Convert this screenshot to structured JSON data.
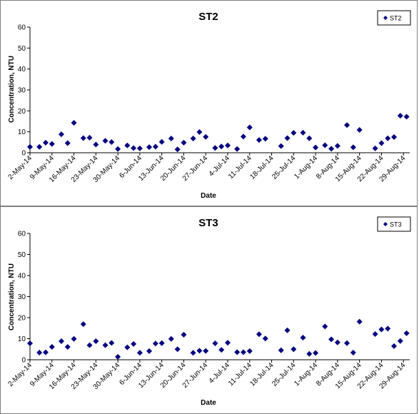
{
  "chart_data": [
    {
      "type": "scatter",
      "title": "ST2",
      "xlabel": "Date",
      "ylabel": "Concentration, NTU",
      "ylim": [
        0,
        60
      ],
      "yticks": [
        "0",
        "10",
        "20",
        "30",
        "40",
        "50",
        "60"
      ],
      "xlim": [
        "2014-05-02",
        "2014-08-31"
      ],
      "xticks": [
        {
          "date": "2014-05-02",
          "label": "2-May-14"
        },
        {
          "date": "2014-05-09",
          "label": "9-May-14"
        },
        {
          "date": "2014-05-16",
          "label": "16-May-14"
        },
        {
          "date": "2014-05-23",
          "label": "23-May-14"
        },
        {
          "date": "2014-05-30",
          "label": "30-May-14"
        },
        {
          "date": "2014-06-06",
          "label": "6-Jun-14"
        },
        {
          "date": "2014-06-13",
          "label": "13-Jun-14"
        },
        {
          "date": "2014-06-20",
          "label": "20-Jun-14"
        },
        {
          "date": "2014-06-27",
          "label": "27-Jun-14"
        },
        {
          "date": "2014-07-04",
          "label": "4-Jul-14"
        },
        {
          "date": "2014-07-11",
          "label": "11-Jul-14"
        },
        {
          "date": "2014-07-18",
          "label": "18-Jul-14"
        },
        {
          "date": "2014-07-25",
          "label": "25-Jul-14"
        },
        {
          "date": "2014-08-01",
          "label": "1-Aug-14"
        },
        {
          "date": "2014-08-08",
          "label": "8-Aug-14"
        },
        {
          "date": "2014-08-15",
          "label": "15-Aug-14"
        },
        {
          "date": "2014-08-22",
          "label": "22-Aug-14"
        },
        {
          "date": "2014-08-29",
          "label": "29-Aug-14"
        }
      ],
      "grid": false,
      "legend": "top-right",
      "series": [
        {
          "name": "ST2",
          "color": "#000080",
          "marker": "diamond",
          "points": [
            {
              "x": "2014-05-02",
              "y": 2.8
            },
            {
              "x": "2014-05-05",
              "y": 2.8
            },
            {
              "x": "2014-05-07",
              "y": 4.8
            },
            {
              "x": "2014-05-09",
              "y": 4.2
            },
            {
              "x": "2014-05-12",
              "y": 8.8
            },
            {
              "x": "2014-05-14",
              "y": 4.6
            },
            {
              "x": "2014-05-16",
              "y": 14.3
            },
            {
              "x": "2014-05-19",
              "y": 7.0
            },
            {
              "x": "2014-05-21",
              "y": 7.2
            },
            {
              "x": "2014-05-23",
              "y": 3.9
            },
            {
              "x": "2014-05-26",
              "y": 5.7
            },
            {
              "x": "2014-05-28",
              "y": 5.1
            },
            {
              "x": "2014-05-30",
              "y": 1.8
            },
            {
              "x": "2014-06-02",
              "y": 3.5
            },
            {
              "x": "2014-06-04",
              "y": 2.2
            },
            {
              "x": "2014-06-06",
              "y": 2.1
            },
            {
              "x": "2014-06-09",
              "y": 2.7
            },
            {
              "x": "2014-06-11",
              "y": 2.9
            },
            {
              "x": "2014-06-13",
              "y": 5.2
            },
            {
              "x": "2014-06-16",
              "y": 6.8
            },
            {
              "x": "2014-06-18",
              "y": 1.6
            },
            {
              "x": "2014-06-20",
              "y": 4.8
            },
            {
              "x": "2014-06-23",
              "y": 6.8
            },
            {
              "x": "2014-06-25",
              "y": 9.9
            },
            {
              "x": "2014-06-27",
              "y": 7.6
            },
            {
              "x": "2014-06-30",
              "y": 2.3
            },
            {
              "x": "2014-07-02",
              "y": 3.0
            },
            {
              "x": "2014-07-04",
              "y": 3.5
            },
            {
              "x": "2014-07-07",
              "y": 1.8
            },
            {
              "x": "2014-07-09",
              "y": 7.7
            },
            {
              "x": "2014-07-11",
              "y": 12.1
            },
            {
              "x": "2014-07-14",
              "y": 6.1
            },
            {
              "x": "2014-07-16",
              "y": 6.7
            },
            {
              "x": "2014-07-21",
              "y": 3.2
            },
            {
              "x": "2014-07-23",
              "y": 7.0
            },
            {
              "x": "2014-07-25",
              "y": 9.5
            },
            {
              "x": "2014-07-28",
              "y": 9.6
            },
            {
              "x": "2014-07-30",
              "y": 6.9
            },
            {
              "x": "2014-08-01",
              "y": 2.5
            },
            {
              "x": "2014-08-04",
              "y": 3.6
            },
            {
              "x": "2014-08-06",
              "y": 1.9
            },
            {
              "x": "2014-08-08",
              "y": 3.3
            },
            {
              "x": "2014-08-11",
              "y": 13.2
            },
            {
              "x": "2014-08-13",
              "y": 2.6
            },
            {
              "x": "2014-08-15",
              "y": 10.9
            },
            {
              "x": "2014-08-20",
              "y": 2.1
            },
            {
              "x": "2014-08-22",
              "y": 4.6
            },
            {
              "x": "2014-08-24",
              "y": 6.9
            },
            {
              "x": "2014-08-26",
              "y": 7.5
            },
            {
              "x": "2014-08-28",
              "y": 17.7
            },
            {
              "x": "2014-08-30",
              "y": 17.2
            }
          ]
        }
      ]
    },
    {
      "type": "scatter",
      "title": "ST3",
      "xlabel": "Date",
      "ylabel": "Concentration, NTU",
      "ylim": [
        0,
        60
      ],
      "yticks": [
        "0",
        "10",
        "20",
        "30",
        "40",
        "50",
        "60"
      ],
      "xlim": [
        "2014-05-02",
        "2014-08-31"
      ],
      "xticks": [
        {
          "date": "2014-05-02",
          "label": "2-May-14"
        },
        {
          "date": "2014-05-09",
          "label": "9-May-14"
        },
        {
          "date": "2014-05-16",
          "label": "16-May-14"
        },
        {
          "date": "2014-05-23",
          "label": "23-May-14"
        },
        {
          "date": "2014-05-30",
          "label": "30-May-14"
        },
        {
          "date": "2014-06-06",
          "label": "6-Jun-14"
        },
        {
          "date": "2014-06-13",
          "label": "13-Jun-14"
        },
        {
          "date": "2014-06-20",
          "label": "20-Jun-14"
        },
        {
          "date": "2014-06-27",
          "label": "27-Jun-14"
        },
        {
          "date": "2014-07-04",
          "label": "4-Jul-14"
        },
        {
          "date": "2014-07-11",
          "label": "11-Jul-14"
        },
        {
          "date": "2014-07-18",
          "label": "18-Jul-14"
        },
        {
          "date": "2014-07-25",
          "label": "25-Jul-14"
        },
        {
          "date": "2014-08-01",
          "label": "1-Aug-14"
        },
        {
          "date": "2014-08-08",
          "label": "8-Aug-14"
        },
        {
          "date": "2014-08-15",
          "label": "15-Aug-14"
        },
        {
          "date": "2014-08-22",
          "label": "22-Aug-14"
        },
        {
          "date": "2014-08-29",
          "label": "29-Aug-14"
        }
      ],
      "grid": false,
      "legend": "top-right",
      "series": [
        {
          "name": "ST3",
          "color": "#000080",
          "marker": "diamond",
          "points": [
            {
              "x": "2014-05-02",
              "y": 7.8
            },
            {
              "x": "2014-05-05",
              "y": 3.4
            },
            {
              "x": "2014-05-07",
              "y": 3.5
            },
            {
              "x": "2014-05-09",
              "y": 6.1
            },
            {
              "x": "2014-05-12",
              "y": 8.8
            },
            {
              "x": "2014-05-14",
              "y": 6.1
            },
            {
              "x": "2014-05-16",
              "y": 9.9
            },
            {
              "x": "2014-05-19",
              "y": 16.9
            },
            {
              "x": "2014-05-21",
              "y": 6.9
            },
            {
              "x": "2014-05-23",
              "y": 8.8
            },
            {
              "x": "2014-05-26",
              "y": 6.9
            },
            {
              "x": "2014-05-28",
              "y": 8.0
            },
            {
              "x": "2014-05-30",
              "y": 1.4
            },
            {
              "x": "2014-06-02",
              "y": 5.9
            },
            {
              "x": "2014-06-04",
              "y": 7.5
            },
            {
              "x": "2014-06-06",
              "y": 3.3
            },
            {
              "x": "2014-06-09",
              "y": 4.1
            },
            {
              "x": "2014-06-11",
              "y": 7.7
            },
            {
              "x": "2014-06-13",
              "y": 7.9
            },
            {
              "x": "2014-06-16",
              "y": 9.9
            },
            {
              "x": "2014-06-18",
              "y": 5.0
            },
            {
              "x": "2014-06-20",
              "y": 11.9
            },
            {
              "x": "2014-06-23",
              "y": 3.3
            },
            {
              "x": "2014-06-25",
              "y": 4.3
            },
            {
              "x": "2014-06-27",
              "y": 4.2
            },
            {
              "x": "2014-06-30",
              "y": 7.8
            },
            {
              "x": "2014-07-02",
              "y": 4.7
            },
            {
              "x": "2014-07-04",
              "y": 8.1
            },
            {
              "x": "2014-07-07",
              "y": 3.6
            },
            {
              "x": "2014-07-09",
              "y": 3.6
            },
            {
              "x": "2014-07-11",
              "y": 4.1
            },
            {
              "x": "2014-07-14",
              "y": 12.1
            },
            {
              "x": "2014-07-16",
              "y": 10.1
            },
            {
              "x": "2014-07-21",
              "y": 4.5
            },
            {
              "x": "2014-07-23",
              "y": 14.0
            },
            {
              "x": "2014-07-25",
              "y": 5.0
            },
            {
              "x": "2014-07-28",
              "y": 10.5
            },
            {
              "x": "2014-07-30",
              "y": 2.8
            },
            {
              "x": "2014-08-01",
              "y": 3.2
            },
            {
              "x": "2014-08-04",
              "y": 15.8
            },
            {
              "x": "2014-08-06",
              "y": 9.7
            },
            {
              "x": "2014-08-08",
              "y": 8.2
            },
            {
              "x": "2014-08-11",
              "y": 7.9
            },
            {
              "x": "2014-08-13",
              "y": 3.4
            },
            {
              "x": "2014-08-15",
              "y": 18.1
            },
            {
              "x": "2014-08-20",
              "y": 12.2
            },
            {
              "x": "2014-08-22",
              "y": 14.4
            },
            {
              "x": "2014-08-24",
              "y": 14.8
            },
            {
              "x": "2014-08-26",
              "y": 6.5
            },
            {
              "x": "2014-08-28",
              "y": 8.9
            },
            {
              "x": "2014-08-30",
              "y": 12.6
            }
          ]
        }
      ]
    }
  ]
}
